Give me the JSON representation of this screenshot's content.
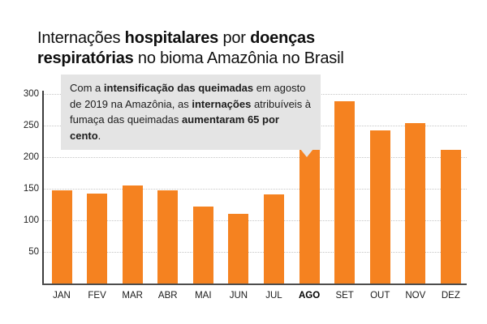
{
  "title": {
    "full": "Internações hospitalares por doenças respiratórias no bioma Amazônia no Brasil",
    "line1": {
      "segments": [
        {
          "text": "Internações ",
          "bold": false
        },
        {
          "text": "hospitalares",
          "bold": true
        },
        {
          "text": " por ",
          "bold": false
        },
        {
          "text": "doenças",
          "bold": true
        }
      ]
    },
    "line2": {
      "segments": [
        {
          "text": "respiratórias",
          "bold": true
        },
        {
          "text": " no bioma Amazônia no Brasil",
          "bold": false
        }
      ]
    }
  },
  "annotation": {
    "full": "Com a intensificação das queimadas em agosto de 2019 na Amazônia, as internações atribuíveis à fumaça das queimadas aumentaram 65 por cento.",
    "segments": [
      {
        "text": "Com a ",
        "bold": false
      },
      {
        "text": "intensificação das queimadas",
        "bold": true
      },
      {
        "text": " em agosto de 2019 na Amazônia, as ",
        "bold": false
      },
      {
        "text": "internações",
        "bold": true
      },
      {
        "text": " atribuíveis à fumaça das queimadas ",
        "bold": false
      },
      {
        "text": "aumentaram 65 por cento",
        "bold": true
      },
      {
        "text": ".",
        "bold": false
      }
    ]
  },
  "chart_data": {
    "type": "bar",
    "title": "Internações hospitalares por doenças respiratórias no bioma Amazônia no Brasil",
    "categories": [
      "JAN",
      "FEV",
      "MAR",
      "ABR",
      "MAI",
      "JUN",
      "JUL",
      "AGO",
      "SET",
      "OUT",
      "NOV",
      "DEZ"
    ],
    "values": [
      148,
      143,
      155,
      147,
      122,
      110,
      141,
      231,
      288,
      242,
      254,
      212
    ],
    "highlight_category": "AGO",
    "xlabel": "",
    "ylabel": "",
    "ylim": [
      0,
      300
    ],
    "y_ticks": [
      50,
      100,
      150,
      200,
      250,
      300
    ],
    "grid": "horizontal-dotted",
    "legend": "none",
    "bar_color": "#F58220"
  },
  "colors": {
    "bar": "#F58220",
    "annotation_background": "#E4E4E4",
    "gridline": "#C6C6C6",
    "axis": "#4D4D4D",
    "text": "#1A1A1A"
  }
}
